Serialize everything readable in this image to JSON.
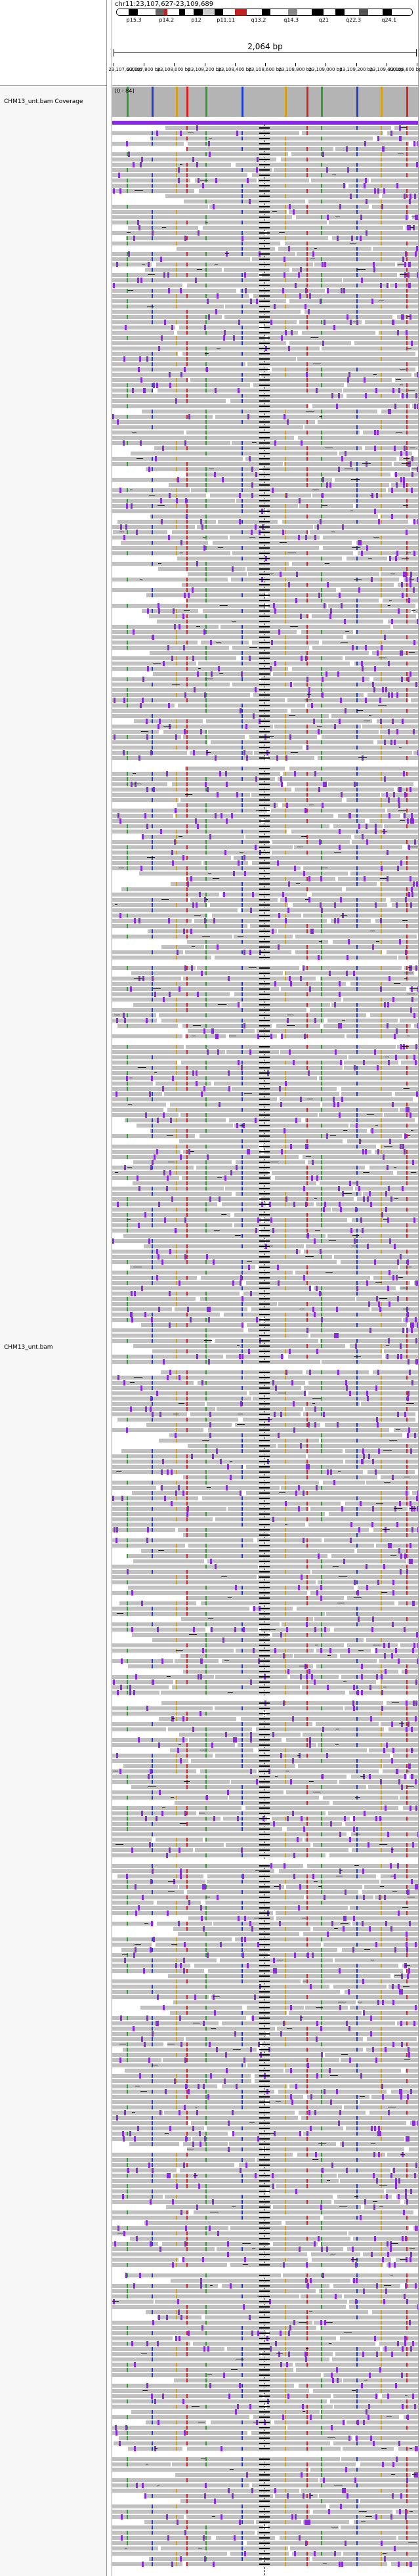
{
  "locus": "chr11:23,107,627-23,109,689",
  "ruler": {
    "span_label": "2,064 bp",
    "ticks": [
      "23,107,600 bp",
      "23,107,800 bp",
      "23,108,000 bp",
      "23,108,200 bp",
      "23,108,400 bp",
      "23,108,600 bp",
      "23,108,800 bp",
      "23,109,000 bp",
      "23,109,200 bp",
      "23,109,400 bp",
      "23,109,600 bp"
    ]
  },
  "ideogram": {
    "band_labels": [
      "p15.3",
      "p14.2",
      "p12",
      "p11.11",
      "q13.2",
      "q14.3",
      "q21",
      "q22.3",
      "q24.1"
    ]
  },
  "tracks": {
    "coverage_label": "CHM13_unt.bam Coverage",
    "coverage_range": "[0 - 84]",
    "alignment_label": "CHM13_unt.bam"
  },
  "colors": {
    "read": "#c1c1c1",
    "insertion": "#8a2be2",
    "mismatch_a": "#2ca02c",
    "mismatch_c": "#1f3fd0",
    "mismatch_g": "#d4a017",
    "mismatch_t": "#e02020",
    "centromere": "#c02020"
  },
  "icons": {
    "coverage": "coverage-histogram-icon",
    "alignment": "read-alignment-icon"
  }
}
